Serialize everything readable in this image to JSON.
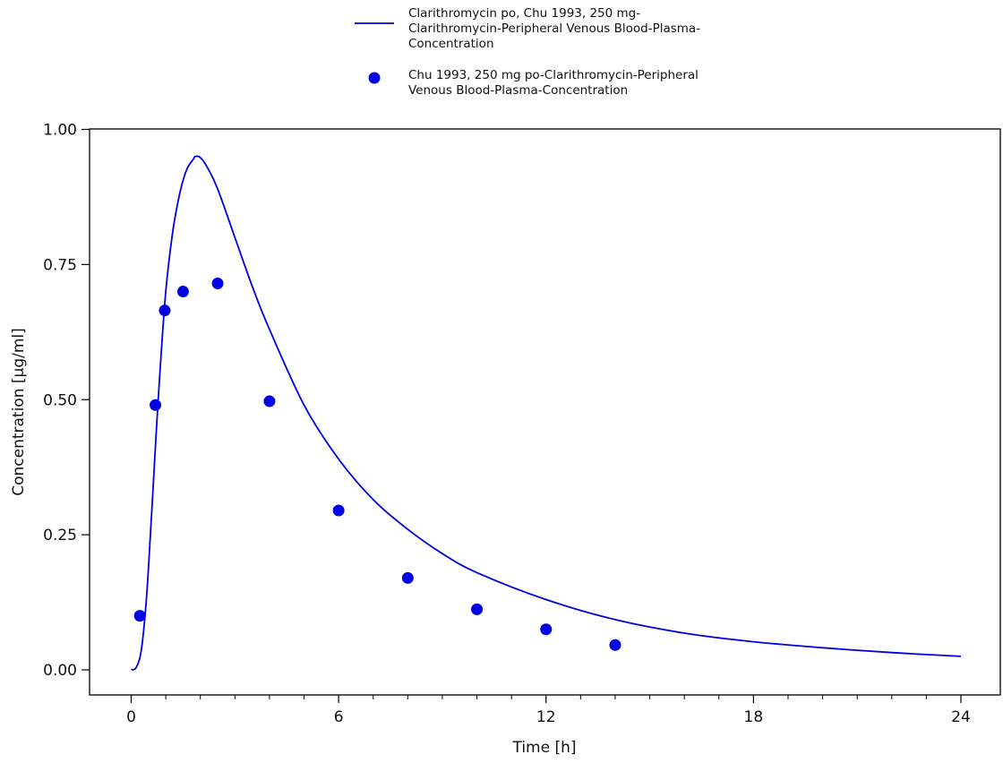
{
  "chart_data": {
    "type": "line",
    "xlabel": "Time [h]",
    "ylabel": "Concentration [µg/ml]",
    "xlim": [
      -1.2,
      24.5
    ],
    "ylim": [
      -0.05,
      1.0
    ],
    "xticks": [
      0,
      6,
      12,
      18,
      24
    ],
    "xtick_labels": [
      "0",
      "6",
      "12",
      "18",
      "24"
    ],
    "xticks_minor": [
      1,
      2,
      3,
      4,
      5,
      7,
      8,
      9,
      10,
      11,
      13,
      14,
      15,
      16,
      17,
      19,
      20,
      21,
      22,
      23
    ],
    "yticks": [
      0.0,
      0.25,
      0.5,
      0.75,
      1.0
    ],
    "ytick_labels": [
      "0.00",
      "0.25",
      "0.50",
      "0.75",
      "1.00"
    ],
    "legend_position": "top-center",
    "grid": false,
    "series": [
      {
        "name": "Clarithromycin po, Chu 1993, 250 mg-Clarithromycin-Peripheral Venous Blood-Plasma-Concentration",
        "kind": "line",
        "color": "#0000e6",
        "x": [
          0,
          0.15,
          0.3,
          0.45,
          0.6,
          0.8,
          1.0,
          1.2,
          1.4,
          1.6,
          1.8,
          1.85,
          2.0,
          2.2,
          2.5,
          3.0,
          3.5,
          4.0,
          5.0,
          6.0,
          7.0,
          8.0,
          9.0,
          10.0,
          12.0,
          14.0,
          16.0,
          18.0,
          20.0,
          22.0,
          24.0
        ],
        "y": [
          0.0,
          0.005,
          0.04,
          0.14,
          0.3,
          0.52,
          0.7,
          0.81,
          0.88,
          0.925,
          0.945,
          0.95,
          0.948,
          0.93,
          0.89,
          0.8,
          0.71,
          0.63,
          0.49,
          0.39,
          0.315,
          0.26,
          0.215,
          0.18,
          0.13,
          0.093,
          0.068,
          0.052,
          0.041,
          0.032,
          0.025
        ],
        "label_lines": [
          "Clarithromycin po, Chu 1993, 250 mg-",
          "Clarithromycin-Peripheral Venous Blood-Plasma-",
          "Concentration"
        ]
      },
      {
        "name": "Chu 1993, 250 mg po-Clarithromycin-Peripheral Venous Blood-Plasma-Concentration",
        "kind": "scatter",
        "color": "#0000e6",
        "x": [
          0.25,
          0.7,
          0.97,
          1.5,
          2.5,
          4.0,
          6.0,
          8.0,
          10.0,
          12.0,
          14.0
        ],
        "y": [
          0.1,
          0.49,
          0.665,
          0.7,
          0.715,
          0.497,
          0.295,
          0.17,
          0.112,
          0.075,
          0.046
        ],
        "label_lines": [
          "Chu 1993, 250 mg po-Clarithromycin-Peripheral",
          "Venous Blood-Plasma-Concentration"
        ]
      }
    ]
  }
}
